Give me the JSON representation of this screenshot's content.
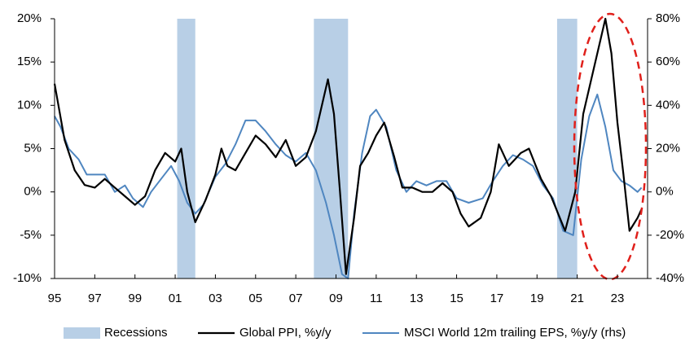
{
  "chart_data": {
    "type": "line",
    "xlim": [
      1995,
      2024.5
    ],
    "xticks": [
      {
        "value": 1995,
        "label": "95"
      },
      {
        "value": 1997,
        "label": "97"
      },
      {
        "value": 1999,
        "label": "99"
      },
      {
        "value": 2001,
        "label": "01"
      },
      {
        "value": 2003,
        "label": "03"
      },
      {
        "value": 2005,
        "label": "05"
      },
      {
        "value": 2007,
        "label": "07"
      },
      {
        "value": 2009,
        "label": "09"
      },
      {
        "value": 2011,
        "label": "11"
      },
      {
        "value": 2013,
        "label": "13"
      },
      {
        "value": 2015,
        "label": "15"
      },
      {
        "value": 2017,
        "label": "17"
      },
      {
        "value": 2019,
        "label": "19"
      },
      {
        "value": 2021,
        "label": "21"
      },
      {
        "value": 2023,
        "label": "23"
      }
    ],
    "ylim": [
      -10,
      20
    ],
    "yticks": [
      {
        "value": -10,
        "label": "-10%"
      },
      {
        "value": -5,
        "label": "-5%"
      },
      {
        "value": 0,
        "label": "0%"
      },
      {
        "value": 5,
        "label": "5%"
      },
      {
        "value": 10,
        "label": "10%"
      },
      {
        "value": 15,
        "label": "15%"
      },
      {
        "value": 20,
        "label": "20%"
      }
    ],
    "y2lim": [
      -40,
      80
    ],
    "y2ticks": [
      {
        "value": -40,
        "label": "-40%"
      },
      {
        "value": -20,
        "label": "-20%"
      },
      {
        "value": 0,
        "label": "0%"
      },
      {
        "value": 20,
        "label": "20%"
      },
      {
        "value": 40,
        "label": "40%"
      },
      {
        "value": 60,
        "label": "60%"
      },
      {
        "value": 80,
        "label": "80%"
      }
    ],
    "recessions": {
      "name": "Recessions",
      "color": "#b8cfe6",
      "ranges": [
        [
          2001.1,
          2002.0
        ],
        [
          2007.9,
          2009.6
        ],
        [
          2020.0,
          2021.0
        ]
      ]
    },
    "series": [
      {
        "name": "Global PPI, %y/y",
        "color": "#000000",
        "x": [
          1995.0,
          1995.5,
          1996.0,
          1996.5,
          1997.0,
          1997.5,
          1998.0,
          1998.5,
          1999.0,
          1999.5,
          2000.0,
          2000.5,
          2001.0,
          2001.3,
          2001.6,
          2002.0,
          2002.5,
          2003.0,
          2003.3,
          2003.6,
          2004.0,
          2004.5,
          2005.0,
          2005.5,
          2006.0,
          2006.5,
          2007.0,
          2007.5,
          2008.0,
          2008.6,
          2008.9,
          2009.2,
          2009.5,
          2009.9,
          2010.2,
          2010.6,
          2011.0,
          2011.4,
          2011.9,
          2012.3,
          2012.8,
          2013.3,
          2013.8,
          2014.3,
          2014.8,
          2015.2,
          2015.6,
          2016.2,
          2016.7,
          2017.1,
          2017.6,
          2018.2,
          2018.6,
          2019.2,
          2019.7,
          2020.4,
          2020.9,
          2021.3,
          2021.7,
          2022.1,
          2022.4,
          2022.7,
          2023.0,
          2023.3,
          2023.6,
          2024.0,
          2024.2
        ],
        "values": [
          12.5,
          6,
          2.5,
          0.8,
          0.5,
          1.5,
          0.5,
          -0.5,
          -1.5,
          -0.5,
          2.5,
          4.5,
          3.5,
          5,
          0,
          -3.5,
          -1,
          2,
          5,
          3,
          2.5,
          4.5,
          6.5,
          5.5,
          4,
          6,
          3,
          4,
          7,
          13,
          9,
          0,
          -9.5,
          -3,
          3,
          4.5,
          6.5,
          8,
          4,
          0.5,
          0.5,
          0,
          0,
          1,
          0,
          -2.5,
          -4,
          -3,
          0,
          5.5,
          3,
          4.5,
          5,
          1.5,
          -0.5,
          -4.5,
          0,
          9,
          13,
          17,
          20,
          16,
          8,
          2,
          -4.5,
          -3,
          -2
        ]
      },
      {
        "name": "MSCI World 12m trailing EPS, %y/y (rhs)",
        "color": "#4f86c0",
        "axis": "y2",
        "x": [
          1995.0,
          1995.3,
          1995.7,
          1996.2,
          1996.6,
          1997.0,
          1997.5,
          1998.0,
          1998.5,
          1998.9,
          1999.4,
          1999.8,
          2000.3,
          2000.8,
          2001.2,
          2001.6,
          2002.0,
          2002.4,
          2003.0,
          2003.5,
          2004.0,
          2004.5,
          2005.0,
          2005.5,
          2006.0,
          2006.5,
          2007.0,
          2007.5,
          2008.0,
          2008.5,
          2008.9,
          2009.3,
          2009.6,
          2009.9,
          2010.3,
          2010.7,
          2011.0,
          2011.5,
          2012.0,
          2012.5,
          2013.0,
          2013.5,
          2014.0,
          2014.5,
          2015.0,
          2015.6,
          2016.3,
          2016.8,
          2017.3,
          2017.8,
          2018.3,
          2018.8,
          2019.3,
          2019.8,
          2020.3,
          2020.8,
          2021.2,
          2021.6,
          2022.0,
          2022.4,
          2022.8,
          2023.2,
          2023.6,
          2024.0,
          2024.2
        ],
        "values": [
          35,
          30,
          20,
          15,
          8,
          8,
          8,
          0,
          3,
          -3,
          -7,
          0,
          6,
          12,
          5,
          -5,
          -10,
          -6,
          7,
          13,
          22,
          33,
          33,
          28,
          22,
          17,
          14,
          18,
          10,
          -5,
          -20,
          -38,
          -40,
          -10,
          18,
          35,
          38,
          30,
          10,
          0,
          5,
          3,
          5,
          5,
          -3,
          -5,
          -3,
          5,
          12,
          17,
          15,
          12,
          3,
          -3,
          -18,
          -20,
          15,
          35,
          45,
          30,
          10,
          5,
          3,
          0,
          2
        ]
      }
    ]
  }
}
